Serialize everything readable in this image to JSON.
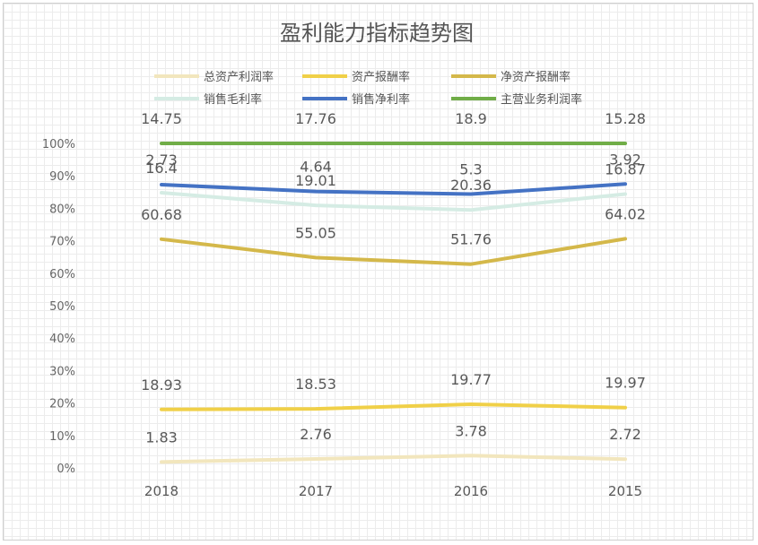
{
  "chart_data": {
    "type": "line",
    "title": "盈利能力指标趋势图",
    "categories": [
      "2018",
      "2017",
      "2016",
      "2015"
    ],
    "ylim": [
      0,
      100
    ],
    "yticks": [
      "0%",
      "10%",
      "20%",
      "30%",
      "40%",
      "50%",
      "60%",
      "70%",
      "80%",
      "90%",
      "100%"
    ],
    "legend_position": "top",
    "grid": true,
    "series": [
      {
        "name": "总资产利润率",
        "color": "#f2e6bd",
        "values": [
          1.83,
          2.76,
          3.78,
          2.72
        ],
        "plot": [
          1.83,
          2.76,
          3.78,
          2.72
        ]
      },
      {
        "name": "资产报酬率",
        "color": "#f0d048",
        "values": [
          18.93,
          18.53,
          19.77,
          19.97
        ],
        "plot": [
          18.0,
          18.2,
          19.6,
          18.6
        ]
      },
      {
        "name": "净资产报酬率",
        "color": "#d4b84a",
        "values": [
          60.68,
          55.05,
          51.76,
          64.02
        ],
        "plot": [
          70.5,
          64.8,
          62.8,
          70.6
        ]
      },
      {
        "name": "销售毛利率",
        "color": "#d5ece4",
        "values": [
          16.4,
          19.01,
          20.36,
          16.87
        ],
        "plot": [
          84.8,
          80.9,
          79.5,
          84.4
        ]
      },
      {
        "name": "销售净利率",
        "color": "#4472c4",
        "values": [
          2.73,
          4.64,
          5.3,
          3.92
        ],
        "plot": [
          87.3,
          85.2,
          84.4,
          87.5
        ]
      },
      {
        "name": "主营业务利润率",
        "color": "#70ad47",
        "values": [
          14.75,
          17.76,
          18.9,
          15.28
        ],
        "plot": [
          100,
          100,
          100,
          100
        ]
      }
    ]
  }
}
